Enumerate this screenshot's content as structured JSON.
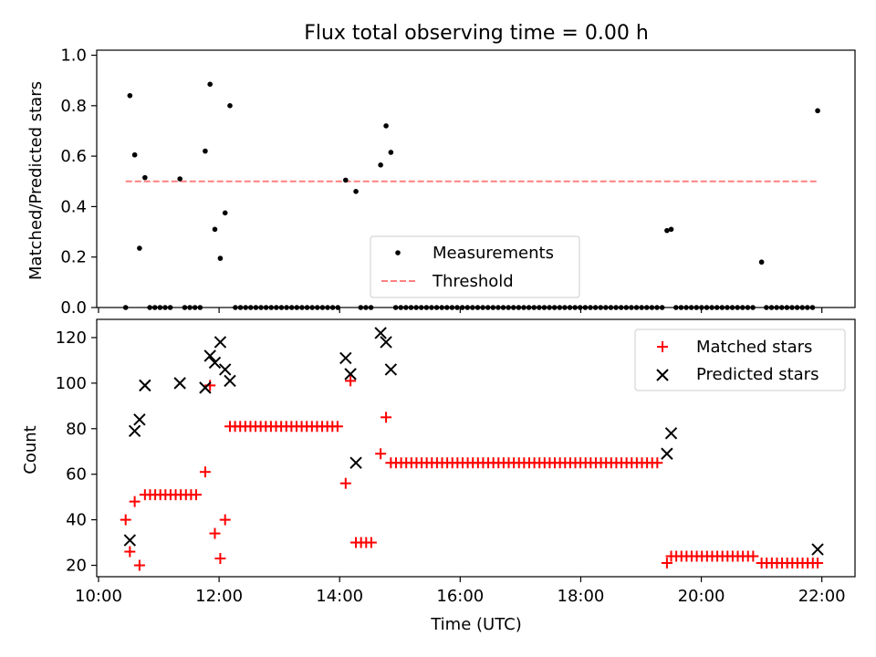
{
  "chart_data": [
    {
      "type": "scatter",
      "title": "Flux total observing time = 0.00 h",
      "xlabel": "",
      "ylabel": "Matched/Predicted stars",
      "xlim": [
        9.97,
        22.55
      ],
      "ylim": [
        0.0,
        1.02
      ],
      "yticks": [
        0.0,
        0.2,
        0.4,
        0.6,
        0.8,
        1.0
      ],
      "ytick_labels": [
        "0.0",
        "0.2",
        "0.4",
        "0.6",
        "0.8",
        "1.0"
      ],
      "xticks": [
        10,
        12,
        14,
        16,
        18,
        20,
        22
      ],
      "grid": false,
      "legend_position": "lower center",
      "series": [
        {
          "name": "Measurements",
          "color": "#000000",
          "marker": "dot",
          "x": [
            10.45,
            10.52,
            10.6,
            10.68,
            10.77,
            11.35,
            11.77,
            11.85,
            11.93,
            12.02,
            12.1,
            12.18,
            14.1,
            14.27,
            14.68,
            14.77,
            14.85,
            19.43,
            19.5,
            21.0,
            21.93
          ],
          "y": [
            0.0,
            0.84,
            0.605,
            0.235,
            0.515,
            0.51,
            0.62,
            0.885,
            0.31,
            0.195,
            0.375,
            0.8,
            0.505,
            0.46,
            0.565,
            0.72,
            0.615,
            0.305,
            0.31,
            0.18,
            0.78
          ],
          "zero_runs": [
            {
              "from": 10.85,
              "to": 11.27,
              "step": 0.085
            },
            {
              "from": 11.43,
              "to": 11.69,
              "step": 0.085
            },
            {
              "from": 12.27,
              "to": 14.02,
              "step": 0.085
            },
            {
              "from": 14.35,
              "to": 14.6,
              "step": 0.085
            },
            {
              "from": 14.93,
              "to": 19.35,
              "step": 0.085
            },
            {
              "from": 19.58,
              "to": 20.92,
              "step": 0.085
            },
            {
              "from": 21.08,
              "to": 21.85,
              "step": 0.085
            }
          ]
        },
        {
          "name": "Threshold",
          "color": "#ff8080",
          "style": "dashed",
          "x": [
            10.45,
            21.93
          ],
          "y": [
            0.5,
            0.5
          ]
        }
      ]
    },
    {
      "type": "scatter",
      "title": "",
      "xlabel": "Time (UTC)",
      "ylabel": "Count",
      "xlim": [
        9.97,
        22.55
      ],
      "ylim": [
        15,
        128
      ],
      "yticks": [
        20,
        40,
        60,
        80,
        100,
        120
      ],
      "xticks": [
        10,
        12,
        14,
        16,
        18,
        20,
        22
      ],
      "xtick_labels": [
        "10:00",
        "12:00",
        "14:00",
        "16:00",
        "18:00",
        "20:00",
        "22:00"
      ],
      "grid": false,
      "legend_position": "upper right",
      "series": [
        {
          "name": "Matched stars",
          "color": "#ff0000",
          "marker": "plus",
          "x": [
            10.45,
            10.52,
            10.6,
            10.68,
            11.77,
            11.85,
            11.93,
            12.02,
            12.1,
            14.1,
            14.18,
            14.68,
            14.77,
            19.43,
            21.93
          ],
          "y": [
            40,
            26,
            48,
            20,
            61,
            99,
            34,
            23,
            40,
            56,
            101,
            69,
            85,
            21,
            21
          ],
          "runs": [
            {
              "from": 10.77,
              "to": 11.69,
              "step": 0.085,
              "value": 51
            },
            {
              "from": 12.18,
              "to": 14.02,
              "step": 0.085,
              "value": 81
            },
            {
              "from": 14.27,
              "to": 14.6,
              "step": 0.085,
              "value": 30
            },
            {
              "from": 14.85,
              "to": 19.35,
              "step": 0.085,
              "value": 65
            },
            {
              "from": 19.5,
              "to": 20.92,
              "step": 0.085,
              "value": 24
            },
            {
              "from": 21.0,
              "to": 21.85,
              "step": 0.085,
              "value": 21
            }
          ]
        },
        {
          "name": "Predicted stars",
          "color": "#000000",
          "marker": "x",
          "x": [
            10.52,
            10.6,
            10.68,
            10.77,
            11.35,
            11.77,
            11.85,
            11.93,
            12.02,
            12.1,
            12.18,
            14.1,
            14.18,
            14.27,
            14.68,
            14.77,
            14.85,
            19.43,
            19.5,
            21.93
          ],
          "y": [
            31,
            79,
            84,
            99,
            100,
            98,
            112,
            109,
            118,
            106,
            101,
            111,
            104,
            65,
            122,
            118,
            106,
            69,
            78,
            27
          ]
        }
      ]
    }
  ]
}
